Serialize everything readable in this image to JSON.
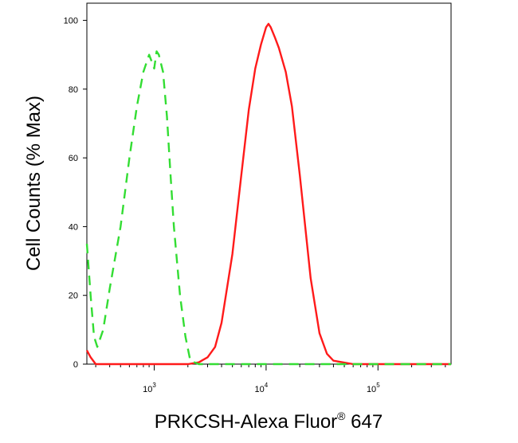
{
  "chart_data": {
    "type": "line",
    "title": "",
    "xlabel": "PRKCSH-Alexa Fluor",
    "xlabel_superscript": "®",
    "xlabel_suffix": " 647",
    "ylabel": "Cell Counts (% Max)",
    "x_scale": "log",
    "xlim": [
      250,
      450000
    ],
    "ylim": [
      0,
      105
    ],
    "grid": false,
    "legend": "none",
    "y_ticks": [
      0,
      20,
      40,
      60,
      80,
      100
    ],
    "x_major_ticks": [
      {
        "value": 1000,
        "base": "10",
        "exp": "3"
      },
      {
        "value": 10000,
        "base": "10",
        "exp": "4"
      },
      {
        "value": 100000,
        "base": "10",
        "exp": "5"
      }
    ],
    "series": [
      {
        "color": "#ff1a1a",
        "style": "solid",
        "x": [
          250,
          270,
          300,
          400,
          600,
          1000,
          2000,
          2500,
          3000,
          3500,
          4000,
          5000,
          6000,
          7000,
          8000,
          9000,
          10000,
          10500,
          11000,
          12000,
          13000,
          15000,
          17000,
          20000,
          25000,
          30000,
          35000,
          40000,
          60000,
          100000,
          200000,
          450000
        ],
        "values": [
          4,
          2,
          0,
          0,
          0,
          0,
          0,
          0.5,
          2,
          5,
          12,
          32,
          55,
          74,
          86,
          93,
          98,
          99,
          98,
          95,
          92,
          85,
          75,
          55,
          25,
          9,
          3,
          1,
          0,
          0,
          0,
          0
        ]
      },
      {
        "color": "#33dd33",
        "style": "dashed",
        "x": [
          250,
          270,
          290,
          310,
          350,
          400,
          500,
          600,
          700,
          800,
          900,
          950,
          1000,
          1050,
          1100,
          1200,
          1300,
          1400,
          1500,
          1700,
          1900,
          2100,
          2500,
          4000,
          10000,
          100000,
          450000
        ],
        "values": [
          35,
          20,
          8,
          5,
          10,
          22,
          40,
          60,
          75,
          85,
          90,
          88,
          86,
          91,
          90,
          85,
          72,
          55,
          40,
          20,
          8,
          1,
          0,
          0,
          0,
          0,
          0
        ]
      }
    ]
  }
}
